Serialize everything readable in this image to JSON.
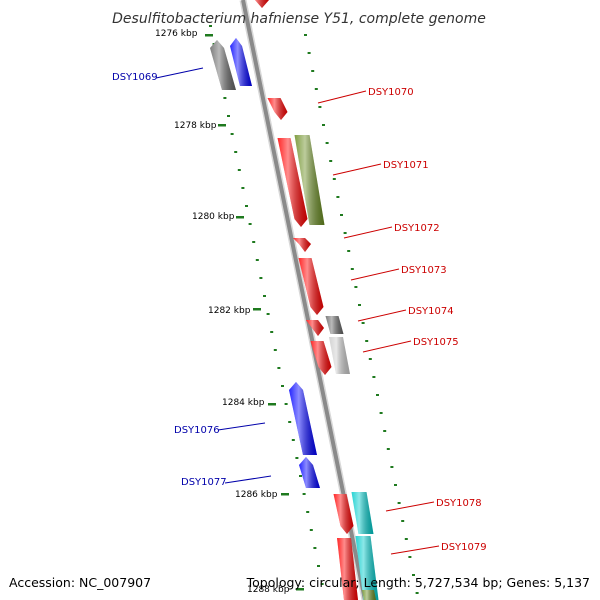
{
  "title": "Desulfitobacterium hafniense Y51, complete genome",
  "footer": {
    "accession": "Accession: NC_007907",
    "summary": "Topology: circular; Length: 5,727,534 bp; Genes: 5,137"
  },
  "colors": {
    "backbone": "#8a8a8a",
    "tick": "#1f7a1f",
    "label_forward": "#cc0000",
    "label_reverse": "#0000aa",
    "gene_red": "#ff0000",
    "gene_blue": "#0000ff",
    "gene_olive": "#6b8e23",
    "gene_darkgray": "#666666",
    "gene_lightgray": "#cccccc",
    "gene_cyan": "#00cccc"
  },
  "kbp_labels": [
    "1276 kbp",
    "1278 kbp",
    "1280 kbp",
    "1282 kbp",
    "1284 kbp",
    "1286 kbp",
    "1288 kbp"
  ],
  "genes": [
    {
      "id": "top-red",
      "label": "",
      "strand": "forward",
      "color": "gene_red"
    },
    {
      "id": "DSY1069-gray",
      "label": "",
      "strand": "reverse",
      "color": "gene_darkgray"
    },
    {
      "id": "DSY1069",
      "label": "DSY1069",
      "strand": "reverse",
      "color": "gene_blue"
    },
    {
      "id": "DSY1070",
      "label": "DSY1070",
      "strand": "forward",
      "color": "gene_red"
    },
    {
      "id": "DSY1071-red",
      "label": "",
      "strand": "forward",
      "color": "gene_red"
    },
    {
      "id": "DSY1071",
      "label": "DSY1071",
      "strand": "forward",
      "color": "gene_olive"
    },
    {
      "id": "DSY1072",
      "label": "DSY1072",
      "strand": "forward",
      "color": "gene_red"
    },
    {
      "id": "DSY1073",
      "label": "DSY1073",
      "strand": "forward",
      "color": "gene_red"
    },
    {
      "id": "DSY1074-red",
      "label": "",
      "strand": "forward",
      "color": "gene_red"
    },
    {
      "id": "DSY1074",
      "label": "DSY1074",
      "strand": "forward",
      "color": "gene_darkgray"
    },
    {
      "id": "DSY1075-red",
      "label": "",
      "strand": "forward",
      "color": "gene_red"
    },
    {
      "id": "DSY1075",
      "label": "DSY1075",
      "strand": "forward",
      "color": "gene_lightgray"
    },
    {
      "id": "DSY1076",
      "label": "DSY1076",
      "strand": "reverse",
      "color": "gene_blue"
    },
    {
      "id": "DSY1077",
      "label": "DSY1077",
      "strand": "reverse",
      "color": "gene_blue"
    },
    {
      "id": "DSY1078-red",
      "label": "",
      "strand": "forward",
      "color": "gene_red"
    },
    {
      "id": "DSY1078",
      "label": "DSY1078",
      "strand": "forward",
      "color": "gene_cyan"
    },
    {
      "id": "DSY1079-red",
      "label": "",
      "strand": "forward",
      "color": "gene_red"
    },
    {
      "id": "DSY1079",
      "label": "DSY1079",
      "strand": "forward",
      "color": "gene_cyan"
    },
    {
      "id": "bottom-olive",
      "label": "",
      "strand": "forward",
      "color": "gene_olive"
    }
  ]
}
